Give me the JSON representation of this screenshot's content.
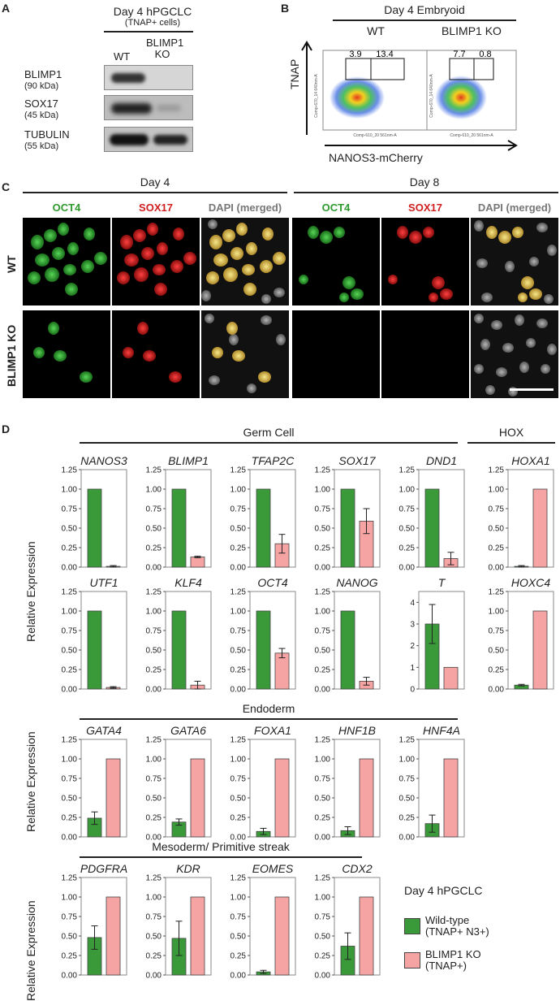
{
  "panelA": {
    "label": "A",
    "title": "Day 4 hPGCLC",
    "subtitle": "(TNAP+ cells)",
    "lanes": [
      "WT",
      "BLIMP1 KO"
    ],
    "proteins": [
      {
        "name": "BLIMP1",
        "kda": "(90 kDa)"
      },
      {
        "name": "SOX17",
        "kda": "(45 kDa)"
      },
      {
        "name": "TUBULIN",
        "kda": "(55 kDa)"
      }
    ]
  },
  "panelB": {
    "label": "B",
    "title": "Day 4 Embryoid",
    "plots": [
      {
        "title": "WT",
        "gate_left": "3.9",
        "gate_right": "13.4"
      },
      {
        "title": "BLIMP1 KO",
        "gate_left": "7.7",
        "gate_right": "0.8"
      }
    ],
    "ylab_small": "Comp-670_14 640nm-A",
    "xlab_small": "Comp-610_20 561nm-A",
    "y_axis": "TNAP",
    "x_axis": "NANOS3-mCherry"
  },
  "panelC": {
    "label": "C",
    "days": [
      "Day 4",
      "Day 8"
    ],
    "channels": [
      "OCT4",
      "SOX17",
      "DAPI (merged)"
    ],
    "rows": [
      "WT",
      "BLIMP1 KO"
    ],
    "colors": {
      "oct4": "#2e9a2e",
      "sox17": "#cf1f1f",
      "dapi": "#777777"
    }
  },
  "panelD": {
    "label": "D",
    "ylabel": "Relative Expression",
    "groups": {
      "germ": "Germ Cell",
      "hox": "HOX",
      "endoderm": "Endoderm",
      "meso": "Mesoderm/ Primitive streak"
    },
    "legend": {
      "title": "Day 4 hPGCLC",
      "items": [
        {
          "label1": "Wild-type",
          "label2": "(TNAP+ N3+)",
          "color": "#3a9a3a"
        },
        {
          "label1": "BLIMP1 KO",
          "label2": "(TNAP+)",
          "color": "#f6a3a3"
        }
      ]
    }
  },
  "chart_data": [
    {
      "type": "bar",
      "title": "NANOS3",
      "categories": [
        "Wild-type",
        "BLIMP1 KO"
      ],
      "values": [
        1.0,
        0.01
      ],
      "errors": [
        0,
        0.01
      ],
      "yticks": [
        "0.00",
        "0.25",
        "0.50",
        "0.75",
        "1.00",
        "1.25"
      ],
      "ylim": [
        0,
        1.25
      ]
    },
    {
      "type": "bar",
      "title": "BLIMP1",
      "categories": [
        "Wild-type",
        "BLIMP1 KO"
      ],
      "values": [
        1.0,
        0.13
      ],
      "errors": [
        0,
        0.01
      ],
      "yticks": [
        "0.00",
        "0.25",
        "0.50",
        "0.75",
        "1.00",
        "1.25"
      ],
      "ylim": [
        0,
        1.25
      ]
    },
    {
      "type": "bar",
      "title": "TFAP2C",
      "categories": [
        "Wild-type",
        "BLIMP1 KO"
      ],
      "values": [
        1.0,
        0.3
      ],
      "errors": [
        0,
        0.12
      ],
      "yticks": [
        "0.00",
        "0.25",
        "0.50",
        "0.75",
        "1.00",
        "1.25"
      ],
      "ylim": [
        0,
        1.25
      ]
    },
    {
      "type": "bar",
      "title": "SOX17",
      "categories": [
        "Wild-type",
        "BLIMP1 KO"
      ],
      "values": [
        1.0,
        0.59
      ],
      "errors": [
        0,
        0.16
      ],
      "yticks": [
        "0.00",
        "0.25",
        "0.50",
        "0.75",
        "1.00",
        "1.25"
      ],
      "ylim": [
        0,
        1.25
      ]
    },
    {
      "type": "bar",
      "title": "DND1",
      "categories": [
        "Wild-type",
        "BLIMP1 KO"
      ],
      "values": [
        1.0,
        0.11
      ],
      "errors": [
        0,
        0.08
      ],
      "yticks": [
        "0.00",
        "0.25",
        "0.50",
        "0.75",
        "1.00",
        "1.25"
      ],
      "ylim": [
        0,
        1.25
      ]
    },
    {
      "type": "bar",
      "title": "HOXA1",
      "categories": [
        "Wild-type",
        "BLIMP1 KO"
      ],
      "values": [
        0.01,
        1.0
      ],
      "errors": [
        0.01,
        0
      ],
      "yticks": [
        "0.00",
        "0.25",
        "0.50",
        "0.75",
        "1.00",
        "1.25"
      ],
      "ylim": [
        0,
        1.25
      ]
    },
    {
      "type": "bar",
      "title": "UTF1",
      "categories": [
        "Wild-type",
        "BLIMP1 KO"
      ],
      "values": [
        1.0,
        0.02
      ],
      "errors": [
        0,
        0.01
      ],
      "yticks": [
        "0.00",
        "0.25",
        "0.50",
        "0.75",
        "1.00",
        "1.25"
      ],
      "ylim": [
        0,
        1.25
      ]
    },
    {
      "type": "bar",
      "title": "KLF4",
      "categories": [
        "Wild-type",
        "BLIMP1 KO"
      ],
      "values": [
        1.0,
        0.05
      ],
      "errors": [
        0,
        0.05
      ],
      "yticks": [
        "0.00",
        "0.25",
        "0.50",
        "0.75",
        "1.00",
        "1.25"
      ],
      "ylim": [
        0,
        1.25
      ]
    },
    {
      "type": "bar",
      "title": "OCT4",
      "categories": [
        "Wild-type",
        "BLIMP1 KO"
      ],
      "values": [
        1.0,
        0.46
      ],
      "errors": [
        0,
        0.06
      ],
      "yticks": [
        "0.00",
        "0.25",
        "0.50",
        "0.75",
        "1.00",
        "1.25"
      ],
      "ylim": [
        0,
        1.25
      ]
    },
    {
      "type": "bar",
      "title": "NANOG",
      "categories": [
        "Wild-type",
        "BLIMP1 KO"
      ],
      "values": [
        1.0,
        0.1
      ],
      "errors": [
        0,
        0.05
      ],
      "yticks": [
        "0.00",
        "0.25",
        "0.50",
        "0.75",
        "1.00",
        "1.25"
      ],
      "ylim": [
        0,
        1.25
      ]
    },
    {
      "type": "bar",
      "title": "T",
      "categories": [
        "Wild-type",
        "BLIMP1 KO"
      ],
      "values": [
        3.0,
        1.0
      ],
      "errors": [
        0.9,
        0
      ],
      "yticks": [
        "0",
        "1",
        "2",
        "3",
        "4"
      ],
      "ylim": [
        0,
        4.5
      ]
    },
    {
      "type": "bar",
      "title": "HOXC4",
      "categories": [
        "Wild-type",
        "BLIMP1 KO"
      ],
      "values": [
        0.05,
        1.0
      ],
      "errors": [
        0.01,
        0
      ],
      "yticks": [
        "0.00",
        "0.25",
        "0.50",
        "0.75",
        "1.00",
        "1.25"
      ],
      "ylim": [
        0,
        1.25
      ]
    },
    {
      "type": "bar",
      "title": "GATA4",
      "categories": [
        "Wild-type",
        "BLIMP1 KO"
      ],
      "values": [
        0.24,
        1.0
      ],
      "errors": [
        0.08,
        0
      ],
      "yticks": [
        "0.00",
        "0.25",
        "0.50",
        "0.75",
        "1.00",
        "1.25"
      ],
      "ylim": [
        0,
        1.25
      ]
    },
    {
      "type": "bar",
      "title": "GATA6",
      "categories": [
        "Wild-type",
        "BLIMP1 KO"
      ],
      "values": [
        0.19,
        1.0
      ],
      "errors": [
        0.04,
        0
      ],
      "yticks": [
        "0.00",
        "0.25",
        "0.50",
        "0.75",
        "1.00",
        "1.25"
      ],
      "ylim": [
        0,
        1.25
      ]
    },
    {
      "type": "bar",
      "title": "FOXA1",
      "categories": [
        "Wild-type",
        "BLIMP1 KO"
      ],
      "values": [
        0.07,
        1.0
      ],
      "errors": [
        0.04,
        0
      ],
      "yticks": [
        "0.00",
        "0.25",
        "0.50",
        "0.75",
        "1.00",
        "1.25"
      ],
      "ylim": [
        0,
        1.25
      ]
    },
    {
      "type": "bar",
      "title": "HNF1B",
      "categories": [
        "Wild-type",
        "BLIMP1 KO"
      ],
      "values": [
        0.08,
        1.0
      ],
      "errors": [
        0.05,
        0
      ],
      "yticks": [
        "0.00",
        "0.25",
        "0.50",
        "0.75",
        "1.00",
        "1.25"
      ],
      "ylim": [
        0,
        1.25
      ]
    },
    {
      "type": "bar",
      "title": "HNF4A",
      "categories": [
        "Wild-type",
        "BLIMP1 KO"
      ],
      "values": [
        0.17,
        1.0
      ],
      "errors": [
        0.11,
        0
      ],
      "yticks": [
        "0.00",
        "0.25",
        "0.50",
        "0.75",
        "1.00",
        "1.25"
      ],
      "ylim": [
        0,
        1.25
      ]
    },
    {
      "type": "bar",
      "title": "PDGFRA",
      "categories": [
        "Wild-type",
        "BLIMP1 KO"
      ],
      "values": [
        0.48,
        1.0
      ],
      "errors": [
        0.15,
        0
      ],
      "yticks": [
        "0.00",
        "0.25",
        "0.50",
        "0.75",
        "1.00",
        "1.25"
      ],
      "ylim": [
        0,
        1.25
      ]
    },
    {
      "type": "bar",
      "title": "KDR",
      "categories": [
        "Wild-type",
        "BLIMP1 KO"
      ],
      "values": [
        0.47,
        1.0
      ],
      "errors": [
        0.22,
        0
      ],
      "yticks": [
        "0.00",
        "0.25",
        "0.50",
        "0.75",
        "1.00",
        "1.25"
      ],
      "ylim": [
        0,
        1.25
      ]
    },
    {
      "type": "bar",
      "title": "EOMES",
      "categories": [
        "Wild-type",
        "BLIMP1 KO"
      ],
      "values": [
        0.04,
        1.0
      ],
      "errors": [
        0.02,
        0
      ],
      "yticks": [
        "0.00",
        "0.25",
        "0.50",
        "0.75",
        "1.00",
        "1.25"
      ],
      "ylim": [
        0,
        1.25
      ]
    },
    {
      "type": "bar",
      "title": "CDX2",
      "categories": [
        "Wild-type",
        "BLIMP1 KO"
      ],
      "values": [
        0.37,
        1.0
      ],
      "errors": [
        0.17,
        0
      ],
      "yticks": [
        "0.00",
        "0.25",
        "0.50",
        "0.75",
        "1.00",
        "1.25"
      ],
      "ylim": [
        0,
        1.25
      ]
    }
  ]
}
